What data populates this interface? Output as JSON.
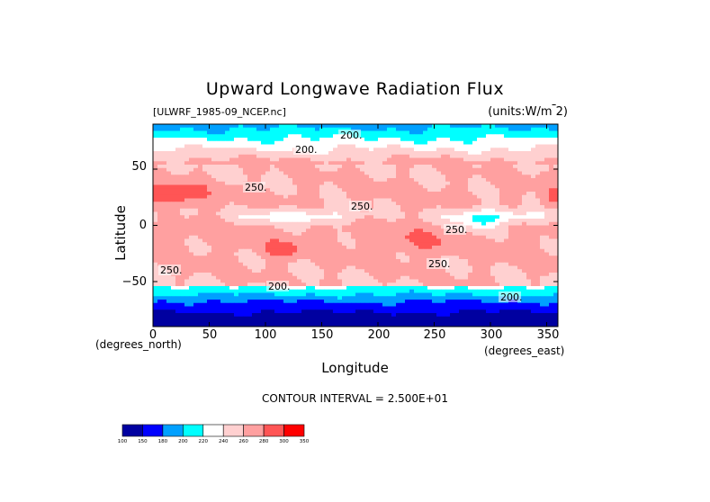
{
  "chart_data": {
    "type": "heatmap",
    "title": "Upward Longwave Radiation Flux",
    "file_label": "[ULWRF_1985-09_NCEP.nc]",
    "units_label": "(units:W/m^2)",
    "xlabel": "Longitude",
    "ylabel": "Latitude",
    "x_units": "(degrees_east)",
    "y_units": "(degrees_north)",
    "xlim": [
      0,
      360
    ],
    "ylim": [
      -90,
      90
    ],
    "x_ticks": [
      "0",
      "50",
      "100",
      "150",
      "200",
      "250",
      "300",
      "350"
    ],
    "y_ticks": [
      "50",
      "0",
      "−50"
    ],
    "contour_interval_text": "CONTOUR INTERVAL = 2.500E+01",
    "contour_labels": [
      "200",
      "200",
      "250",
      "250",
      "250",
      "250",
      "250",
      "200",
      "200"
    ],
    "colorbar": {
      "levels": [
        "100",
        "150",
        "180",
        "200",
        "220",
        "240",
        "260",
        "280",
        "300",
        "350"
      ],
      "colors": [
        "#0000a0",
        "#0000ff",
        "#00a0ff",
        "#00ffff",
        "#ffffff",
        "#ffd0d0",
        "#ffa0a0",
        "#ff5555",
        "#ff0000"
      ]
    }
  }
}
